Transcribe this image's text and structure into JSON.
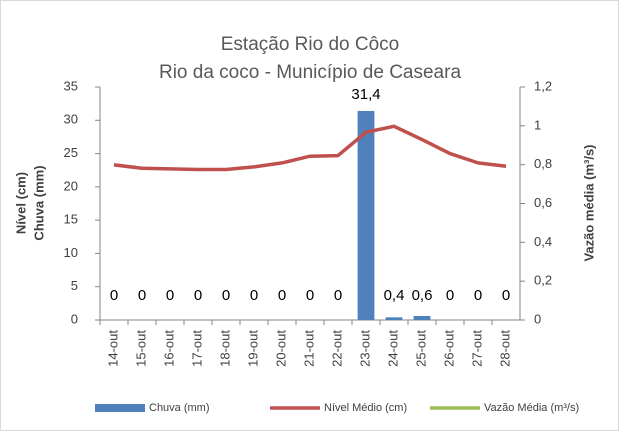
{
  "chart_data": {
    "type": "bar",
    "title": "Estação Rio do Côco",
    "subtitle": "Rio da coco - Município de Caseara",
    "y_label": [
      "Nível (cm)",
      "Chuva (mm)"
    ],
    "y2_label": "Vazão média (m³/s)",
    "categories": [
      "14-out",
      "15-out",
      "16-out",
      "17-out",
      "18-out",
      "19-out",
      "20-out",
      "21-out",
      "22-out",
      "23-out",
      "24-out",
      "25-out",
      "26-out",
      "27-out",
      "28-out"
    ],
    "series": [
      {
        "name": "Chuva (mm)",
        "type": "bar",
        "color": "#4f81bd",
        "values": [
          0,
          0,
          0,
          0,
          0,
          0,
          0,
          0,
          0,
          31.4,
          0.4,
          0.6,
          0,
          0,
          0
        ],
        "value_labels": [
          "0",
          "0",
          "0",
          "0",
          "0",
          "0",
          "0",
          "0",
          "0",
          "31,4",
          "0,4",
          "0,6",
          "0",
          "0",
          "0"
        ]
      },
      {
        "name": "Nível Médio (cm)",
        "type": "line",
        "color": "#c0504d",
        "values": [
          23.3,
          22.8,
          22.7,
          22.6,
          22.6,
          23.0,
          23.6,
          24.6,
          24.7,
          28.2,
          29.1,
          27.1,
          25.0,
          23.6,
          23.1
        ]
      },
      {
        "name": "Vazão Média (m³/s)",
        "type": "line",
        "axis": "y2",
        "color": "#9bbb59",
        "values": [
          null,
          null,
          null,
          null,
          null,
          null,
          null,
          null,
          null,
          null,
          null,
          null,
          null,
          null,
          null
        ]
      }
    ],
    "ylim": [
      0,
      35
    ],
    "yticks": [
      0,
      5,
      10,
      15,
      20,
      25,
      30,
      35
    ],
    "y2lim": [
      0,
      1.2
    ],
    "y2ticks": [
      0,
      {
        "value": 0.2,
        "label": "0,2"
      },
      {
        "value": 0.4,
        "label": "0,4"
      },
      {
        "value": 0.6,
        "label": "0,6"
      },
      {
        "value": 0.8,
        "label": "0,8"
      },
      1,
      {
        "value": 1.2,
        "label": "1,2"
      }
    ]
  }
}
